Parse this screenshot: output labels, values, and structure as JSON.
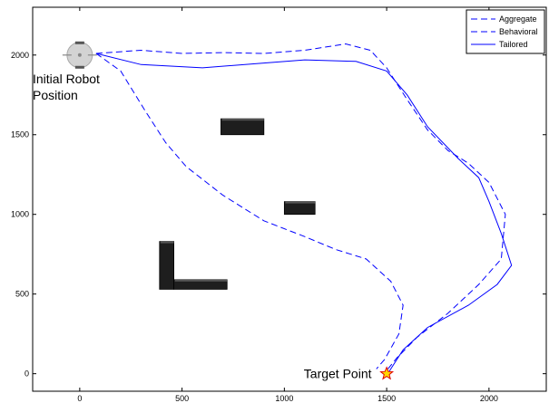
{
  "chart_data": {
    "type": "line",
    "title": "",
    "xlabel": "",
    "ylabel": "",
    "xlim": [
      -230,
      2280
    ],
    "ylim": [
      -110,
      2300
    ],
    "grid": false,
    "legend_position": "top-right",
    "x_ticks": [
      0,
      500,
      1000,
      1500,
      2000
    ],
    "y_ticks": [
      0,
      500,
      1000,
      1500,
      2000
    ],
    "series": [
      {
        "name": "Aggregate",
        "style": "dashed",
        "color": "#0000ff",
        "points": [
          [
            80,
            2010
          ],
          [
            300,
            2030
          ],
          [
            500,
            2010
          ],
          [
            700,
            2015
          ],
          [
            900,
            2010
          ],
          [
            1100,
            2030
          ],
          [
            1300,
            2070
          ],
          [
            1420,
            2030
          ],
          [
            1500,
            1920
          ],
          [
            1600,
            1720
          ],
          [
            1700,
            1530
          ],
          [
            1800,
            1400
          ],
          [
            1900,
            1320
          ],
          [
            2000,
            1200
          ],
          [
            2080,
            1000
          ],
          [
            2060,
            720
          ],
          [
            1950,
            560
          ],
          [
            1800,
            380
          ],
          [
            1650,
            230
          ],
          [
            1550,
            100
          ],
          [
            1500,
            20
          ]
        ]
      },
      {
        "name": "Behavioral",
        "style": "dashed",
        "color": "#0000ff",
        "points": [
          [
            80,
            2010
          ],
          [
            200,
            1900
          ],
          [
            320,
            1650
          ],
          [
            420,
            1450
          ],
          [
            520,
            1300
          ],
          [
            700,
            1120
          ],
          [
            900,
            960
          ],
          [
            1100,
            860
          ],
          [
            1250,
            780
          ],
          [
            1400,
            720
          ],
          [
            1520,
            580
          ],
          [
            1580,
            430
          ],
          [
            1560,
            250
          ],
          [
            1490,
            90
          ],
          [
            1450,
            30
          ]
        ]
      },
      {
        "name": "Tailored",
        "style": "solid",
        "color": "#0000ff",
        "points": [
          [
            80,
            2010
          ],
          [
            300,
            1940
          ],
          [
            600,
            1920
          ],
          [
            900,
            1950
          ],
          [
            1100,
            1970
          ],
          [
            1350,
            1960
          ],
          [
            1500,
            1900
          ],
          [
            1600,
            1750
          ],
          [
            1700,
            1550
          ],
          [
            1850,
            1350
          ],
          [
            1950,
            1230
          ],
          [
            2000,
            1080
          ],
          [
            2060,
            880
          ],
          [
            2110,
            680
          ],
          [
            2040,
            560
          ],
          [
            1900,
            430
          ],
          [
            1700,
            290
          ],
          [
            1580,
            150
          ],
          [
            1510,
            10
          ]
        ]
      }
    ],
    "obstacles": [
      {
        "x0": 690,
        "y0": 1500,
        "x1": 900,
        "y1": 1600
      },
      {
        "x0": 1000,
        "y0": 1000,
        "x1": 1150,
        "y1": 1080
      },
      {
        "x0": 390,
        "y0": 530,
        "x1": 460,
        "y1": 830
      },
      {
        "x0": 460,
        "y0": 530,
        "x1": 720,
        "y1": 590
      }
    ],
    "annotations": [
      {
        "text": "Initial Robot",
        "x": -230,
        "y": 1850
      },
      {
        "text": "Position",
        "x": -230,
        "y": 1750
      },
      {
        "text": "Target Point",
        "x": 1095,
        "y": 0
      }
    ],
    "start_point": {
      "x": 0,
      "y": 2000
    },
    "target_point": {
      "x": 1500,
      "y": 0
    }
  }
}
